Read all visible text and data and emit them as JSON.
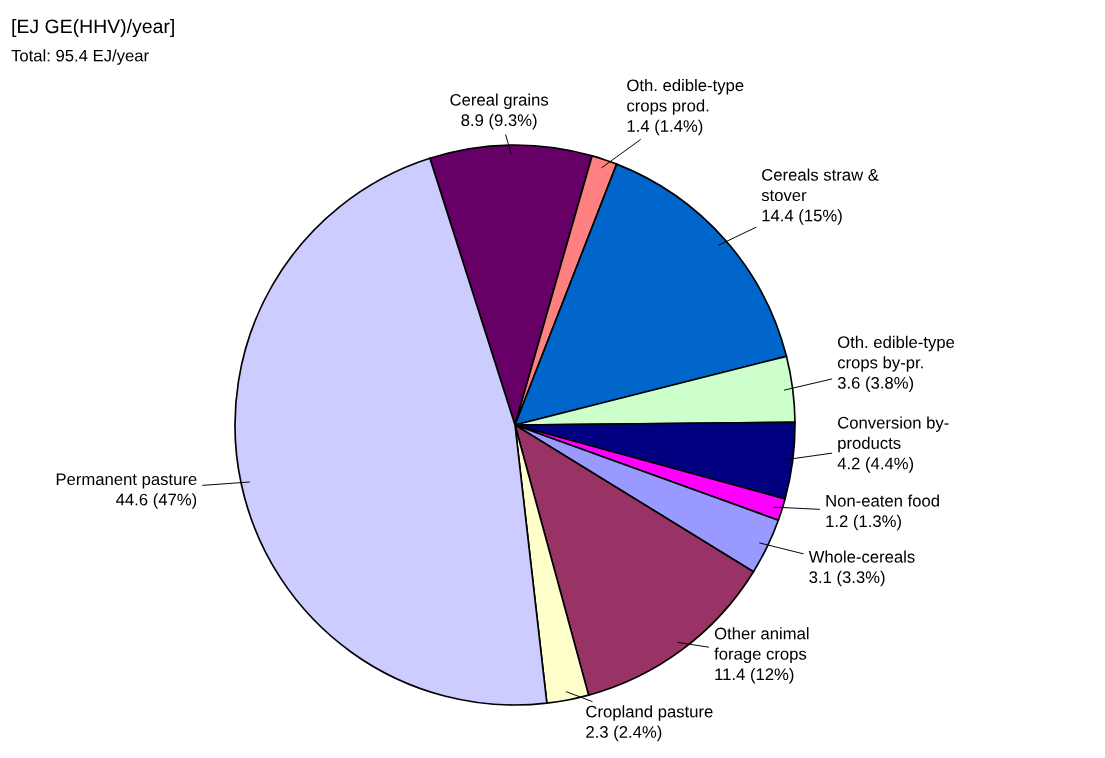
{
  "chart_data": {
    "type": "pie",
    "title": "[EJ GE(HHV)/year]",
    "subtitle": "Total: 95.4 EJ/year",
    "categories": [
      "Cereal grains",
      "Oth. edible-type\ncrops prod.",
      "Cereals straw &\nstover",
      "Oth. edible-type\ncrops by-pr.",
      "Conversion by-\nproducts",
      "Non-eaten food",
      "Whole-cereals",
      "Other animal\nforage crops",
      "Cropland pasture",
      "Permanent pasture"
    ],
    "values": [
      8.9,
      1.4,
      14.4,
      3.6,
      4.2,
      1.2,
      3.1,
      11.4,
      2.3,
      44.6
    ],
    "value_labels": [
      "8.9 (9.3%)",
      "1.4 (1.4%)",
      "14.4 (15%)",
      "3.6 (3.8%)",
      "4.2 (4.4%)",
      "1.2 (1.3%)",
      "3.1 (3.3%)",
      "11.4 (12%)",
      "2.3 (2.4%)",
      "44.6 (47%)"
    ],
    "colors": [
      "#660066",
      "#ff8080",
      "#0066cc",
      "#ccffcc",
      "#000080",
      "#ff00ff",
      "#9999ff",
      "#993366",
      "#ffffcc",
      "#ccccff"
    ]
  }
}
